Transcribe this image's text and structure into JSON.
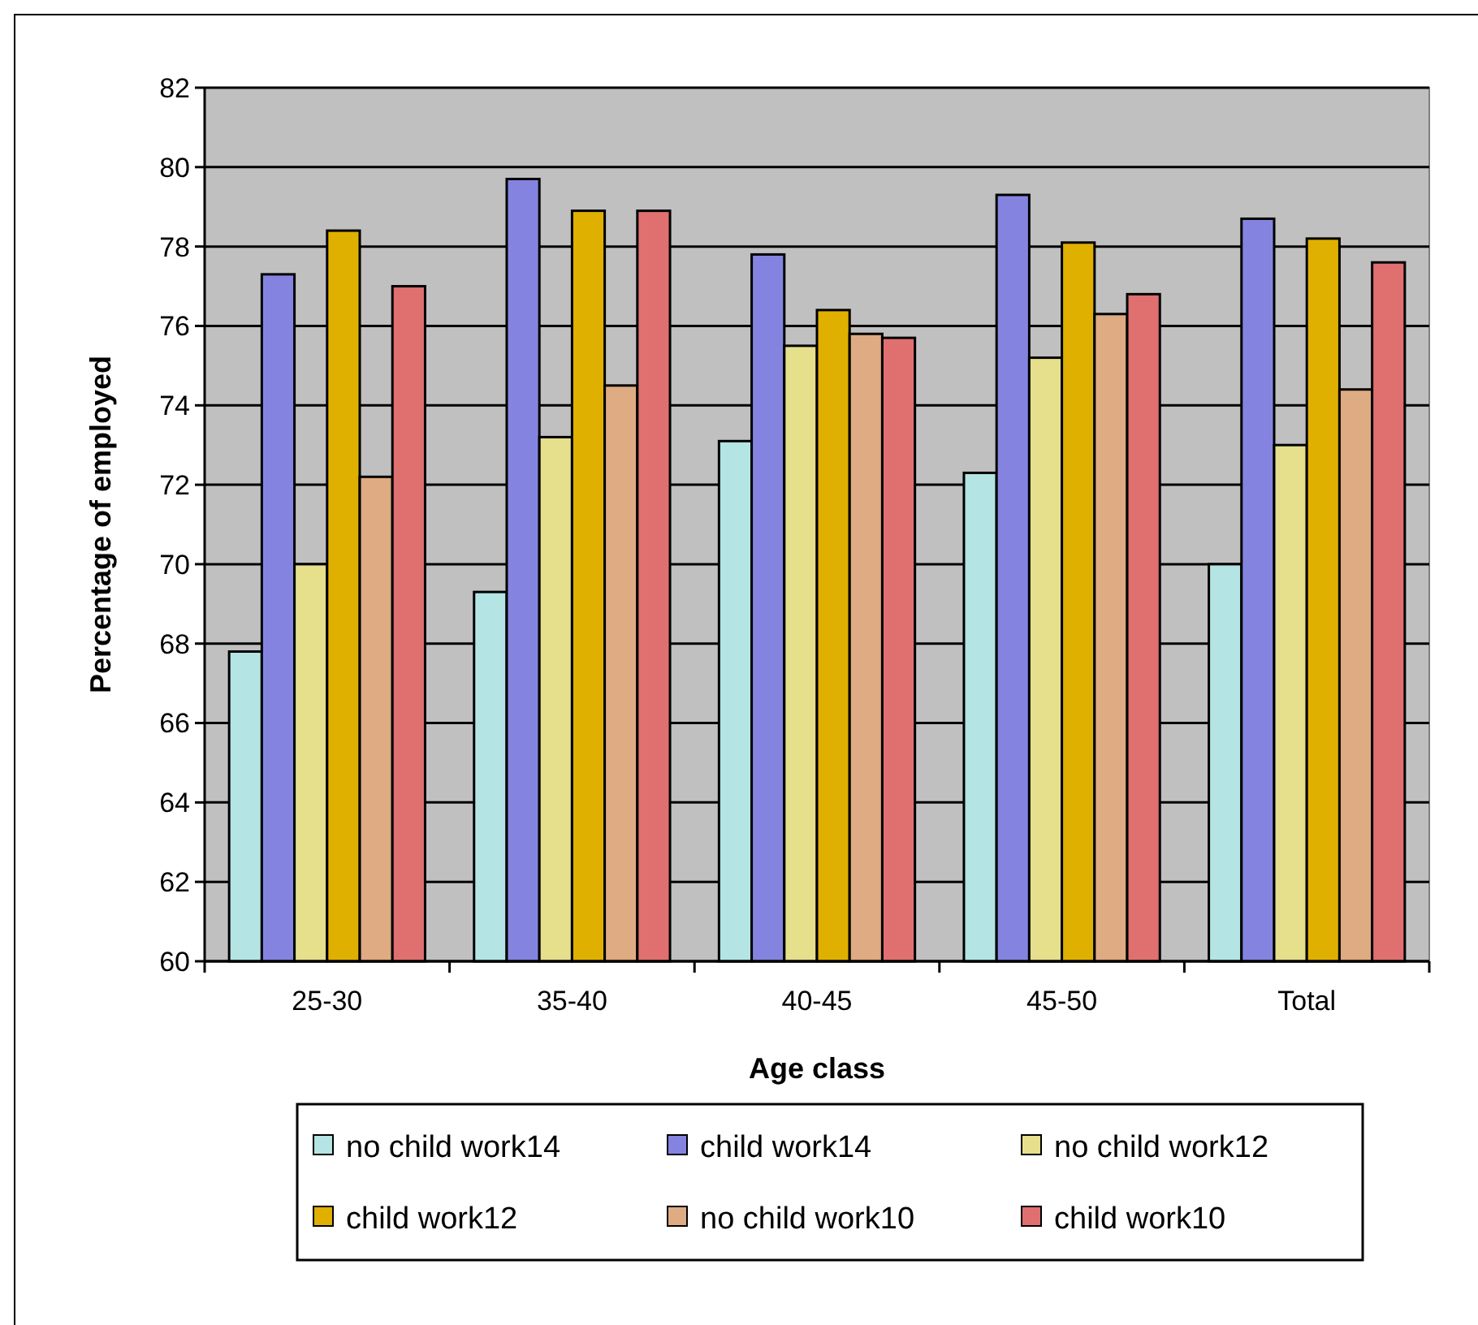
{
  "chart_data": {
    "type": "bar",
    "xlabel": "Age class",
    "ylabel": "Percentage of employed",
    "categories": [
      "25-30",
      "35-40",
      "40-45",
      "45-50",
      "Total"
    ],
    "series": [
      {
        "name": "no child work14",
        "color": "#b4e4e4",
        "values": [
          67.8,
          69.3,
          73.1,
          72.3,
          70.0
        ]
      },
      {
        "name": "child work14",
        "color": "#8484e0",
        "values": [
          77.3,
          79.7,
          77.8,
          79.3,
          78.7
        ]
      },
      {
        "name": "no child work12",
        "color": "#e6df8c",
        "values": [
          70.0,
          73.2,
          75.5,
          75.2,
          73.0
        ]
      },
      {
        "name": "child work12",
        "color": "#e0b000",
        "values": [
          78.4,
          78.9,
          76.4,
          78.1,
          78.2
        ]
      },
      {
        "name": "no child work10",
        "color": "#dfab82",
        "values": [
          72.2,
          74.5,
          75.8,
          76.3,
          74.4
        ]
      },
      {
        "name": "child work10",
        "color": "#e07070",
        "values": [
          77.0,
          78.9,
          75.7,
          76.8,
          77.6
        ]
      }
    ],
    "ylim": [
      60,
      82
    ],
    "yticks": [
      60,
      62,
      64,
      66,
      68,
      70,
      72,
      74,
      76,
      78,
      80,
      82
    ],
    "grid": "y",
    "legend": "bottom"
  }
}
